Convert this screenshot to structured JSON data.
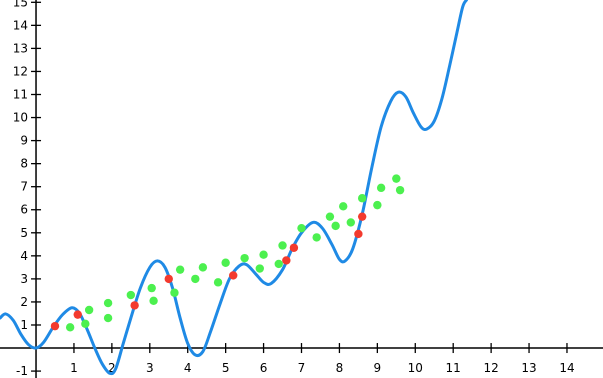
{
  "colors": {
    "curve": "#1f8ae5",
    "red_points": "#f33a2e",
    "green_points": "#4cf04f",
    "axis": "#000000",
    "background": "#ffffff"
  },
  "chart_data": {
    "type": "scatter",
    "title": "",
    "xlabel": "",
    "ylabel": "",
    "grid": false,
    "legend": "none",
    "xlim": [
      -0.95,
      14.95
    ],
    "ylim": [
      -1.3,
      15.1
    ],
    "x_ticks": [
      "1",
      "2",
      "3",
      "4",
      "5",
      "6",
      "7",
      "8",
      "9",
      "10",
      "11",
      "12",
      "13",
      "14"
    ],
    "y_ticks": [
      "-1",
      "1",
      "2",
      "3",
      "4",
      "5",
      "6",
      "7",
      "8",
      "9",
      "10",
      "11",
      "12",
      "13",
      "14",
      "15"
    ],
    "series": [
      {
        "kind": "line",
        "color": "curve",
        "points": [
          [
            -0.95,
            1.3
          ],
          [
            -0.8,
            1.48
          ],
          [
            -0.6,
            1.2
          ],
          [
            -0.4,
            0.6
          ],
          [
            -0.2,
            0.15
          ],
          [
            0,
            0
          ],
          [
            0.2,
            0.25
          ],
          [
            0.45,
            0.9
          ],
          [
            0.7,
            1.45
          ],
          [
            0.95,
            1.75
          ],
          [
            1.15,
            1.5
          ],
          [
            1.35,
            0.8
          ],
          [
            1.55,
            0
          ],
          [
            1.75,
            -0.7
          ],
          [
            1.95,
            -1.1
          ],
          [
            2.1,
            -0.9
          ],
          [
            2.3,
            0.2
          ],
          [
            2.5,
            1.3
          ],
          [
            2.75,
            2.6
          ],
          [
            3.0,
            3.5
          ],
          [
            3.2,
            3.78
          ],
          [
            3.4,
            3.5
          ],
          [
            3.6,
            2.6
          ],
          [
            3.8,
            1.3
          ],
          [
            4.0,
            0.2
          ],
          [
            4.2,
            -0.3
          ],
          [
            4.4,
            -0.15
          ],
          [
            4.6,
            0.7
          ],
          [
            4.85,
            1.9
          ],
          [
            5.1,
            3.0
          ],
          [
            5.35,
            3.55
          ],
          [
            5.55,
            3.62
          ],
          [
            5.8,
            3.2
          ],
          [
            6.0,
            2.85
          ],
          [
            6.2,
            2.8
          ],
          [
            6.5,
            3.4
          ],
          [
            6.75,
            4.3
          ],
          [
            7.0,
            5.0
          ],
          [
            7.3,
            5.45
          ],
          [
            7.55,
            5.2
          ],
          [
            7.8,
            4.5
          ],
          [
            8.0,
            3.85
          ],
          [
            8.15,
            3.78
          ],
          [
            8.35,
            4.3
          ],
          [
            8.6,
            5.8
          ],
          [
            8.85,
            7.8
          ],
          [
            9.1,
            9.6
          ],
          [
            9.35,
            10.7
          ],
          [
            9.55,
            11.1
          ],
          [
            9.75,
            10.9
          ],
          [
            9.95,
            10.2
          ],
          [
            10.15,
            9.6
          ],
          [
            10.3,
            9.5
          ],
          [
            10.5,
            9.85
          ],
          [
            10.7,
            10.8
          ],
          [
            10.9,
            12.2
          ],
          [
            11.1,
            13.7
          ],
          [
            11.25,
            14.8
          ],
          [
            11.35,
            15.1
          ]
        ]
      },
      {
        "kind": "scatter",
        "color": "red_points",
        "points": [
          [
            0.5,
            0.95
          ],
          [
            1.1,
            1.45
          ],
          [
            2.6,
            1.85
          ],
          [
            3.5,
            3.0
          ],
          [
            5.2,
            3.15
          ],
          [
            6.6,
            3.8
          ],
          [
            6.8,
            4.35
          ],
          [
            8.5,
            4.95
          ],
          [
            8.6,
            5.7
          ]
        ]
      },
      {
        "kind": "scatter",
        "color": "green_points",
        "points": [
          [
            0.9,
            0.9
          ],
          [
            1.3,
            1.05
          ],
          [
            1.4,
            1.65
          ],
          [
            1.9,
            1.3
          ],
          [
            1.9,
            1.95
          ],
          [
            2.5,
            2.3
          ],
          [
            3.05,
            2.6
          ],
          [
            3.1,
            2.05
          ],
          [
            3.65,
            2.4
          ],
          [
            3.8,
            3.4
          ],
          [
            4.2,
            3.0
          ],
          [
            4.4,
            3.5
          ],
          [
            4.8,
            2.85
          ],
          [
            5.0,
            3.7
          ],
          [
            5.5,
            3.9
          ],
          [
            5.9,
            3.45
          ],
          [
            6.0,
            4.05
          ],
          [
            6.4,
            3.65
          ],
          [
            6.5,
            4.45
          ],
          [
            7.0,
            5.2
          ],
          [
            7.4,
            4.8
          ],
          [
            7.75,
            5.7
          ],
          [
            7.9,
            5.3
          ],
          [
            8.1,
            6.15
          ],
          [
            8.3,
            5.45
          ],
          [
            8.6,
            6.5
          ],
          [
            9.0,
            6.2
          ],
          [
            9.1,
            6.95
          ],
          [
            9.5,
            7.35
          ],
          [
            9.6,
            6.85
          ]
        ]
      }
    ]
  }
}
